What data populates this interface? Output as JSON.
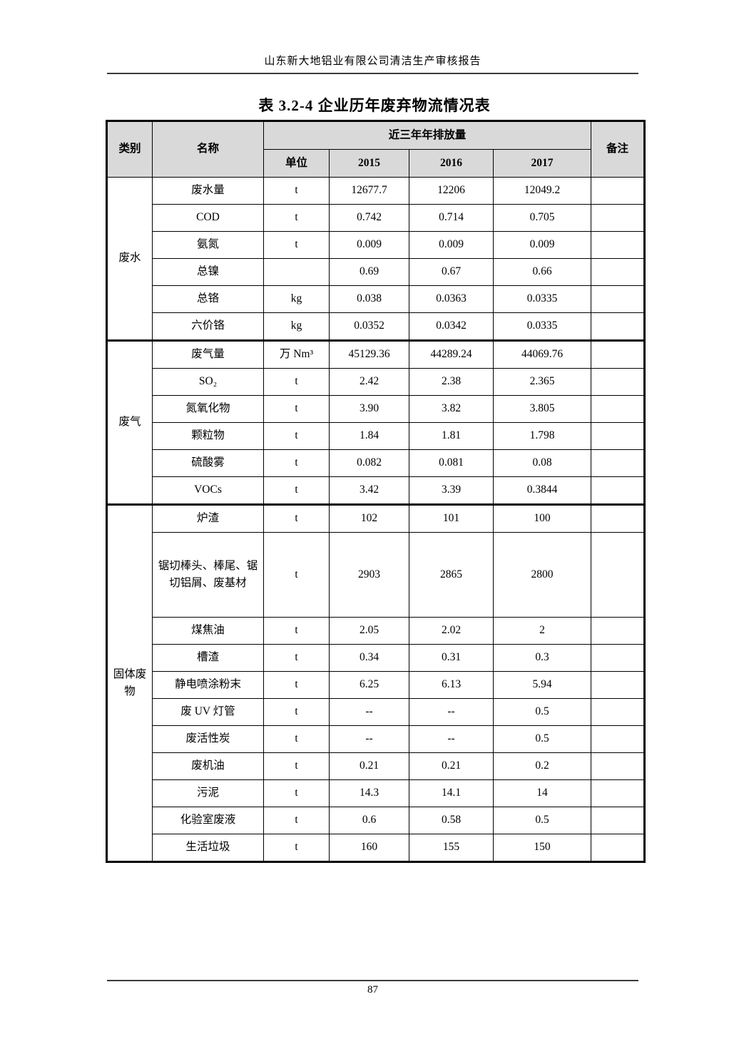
{
  "page": {
    "header_title": "山东新大地铝业有限公司清洁生产审核报告",
    "page_number": "87"
  },
  "colors": {
    "table_header_bg": "#d9d9d9",
    "border": "#000000"
  },
  "table": {
    "title": "表 3.2-4  企业历年废弃物流情况表",
    "headers": {
      "category": "类别",
      "name": "名称",
      "emissions_span": "近三年年排放量",
      "unit": "单位",
      "years": [
        "2015",
        "2016",
        "2017"
      ],
      "remark": "备注"
    },
    "groups": [
      {
        "category": "废水",
        "rows": [
          {
            "name": "废水量",
            "unit": "t",
            "values": [
              "12677.7",
              "12206",
              "12049.2"
            ],
            "remark": ""
          },
          {
            "name": "COD",
            "unit": "t",
            "values": [
              "0.742",
              "0.714",
              "0.705"
            ],
            "remark": ""
          },
          {
            "name": "氨氮",
            "unit": "t",
            "values": [
              "0.009",
              "0.009",
              "0.009"
            ],
            "remark": ""
          },
          {
            "name": "总镍",
            "unit": "",
            "values": [
              "0.69",
              "0.67",
              "0.66"
            ],
            "remark": ""
          },
          {
            "name": "总铬",
            "unit": "kg",
            "values": [
              "0.038",
              "0.0363",
              "0.0335"
            ],
            "remark": ""
          },
          {
            "name": "六价铬",
            "unit": "kg",
            "values": [
              "0.0352",
              "0.0342",
              "0.0335"
            ],
            "remark": ""
          }
        ]
      },
      {
        "category": "废气",
        "rows": [
          {
            "name": "废气量",
            "unit": "万 Nm³",
            "values": [
              "45129.36",
              "44289.24",
              "44069.76"
            ],
            "remark": ""
          },
          {
            "name": "SO₂",
            "unit": "t",
            "values": [
              "2.42",
              "2.38",
              "2.365"
            ],
            "remark": ""
          },
          {
            "name": "氮氧化物",
            "unit": "t",
            "values": [
              "3.90",
              "3.82",
              "3.805"
            ],
            "remark": ""
          },
          {
            "name": "颗粒物",
            "unit": "t",
            "values": [
              "1.84",
              "1.81",
              "1.798"
            ],
            "remark": ""
          },
          {
            "name": "硫酸雾",
            "unit": "t",
            "values": [
              "0.082",
              "0.081",
              "0.08"
            ],
            "remark": ""
          },
          {
            "name": "VOCs",
            "unit": "t",
            "values": [
              "3.42",
              "3.39",
              "0.3844"
            ],
            "remark": ""
          }
        ]
      },
      {
        "category": "固体废物",
        "rows": [
          {
            "name": "炉渣",
            "unit": "t",
            "values": [
              "102",
              "101",
              "100"
            ],
            "remark": ""
          },
          {
            "name": "锯切棒头、棒尾、锯切铝屑、废基材",
            "unit": "t",
            "values": [
              "2903",
              "2865",
              "2800"
            ],
            "remark": ""
          },
          {
            "name": "煤焦油",
            "unit": "t",
            "values": [
              "2.05",
              "2.02",
              "2"
            ],
            "remark": ""
          },
          {
            "name": "槽渣",
            "unit": "t",
            "values": [
              "0.34",
              "0.31",
              "0.3"
            ],
            "remark": ""
          },
          {
            "name": "静电喷涂粉末",
            "unit": "t",
            "values": [
              "6.25",
              "6.13",
              "5.94"
            ],
            "remark": ""
          },
          {
            "name": "废 UV 灯管",
            "unit": "t",
            "values": [
              "--",
              "--",
              "0.5"
            ],
            "remark": ""
          },
          {
            "name": "废活性炭",
            "unit": "t",
            "values": [
              "--",
              "--",
              "0.5"
            ],
            "remark": ""
          },
          {
            "name": "废机油",
            "unit": "t",
            "values": [
              "0.21",
              "0.21",
              "0.2"
            ],
            "remark": ""
          },
          {
            "name": "污泥",
            "unit": "t",
            "values": [
              "14.3",
              "14.1",
              "14"
            ],
            "remark": ""
          },
          {
            "name": "化验室废液",
            "unit": "t",
            "values": [
              "0.6",
              "0.58",
              "0.5"
            ],
            "remark": ""
          },
          {
            "name": "生活垃圾",
            "unit": "t",
            "values": [
              "160",
              "155",
              "150"
            ],
            "remark": ""
          }
        ]
      }
    ]
  }
}
